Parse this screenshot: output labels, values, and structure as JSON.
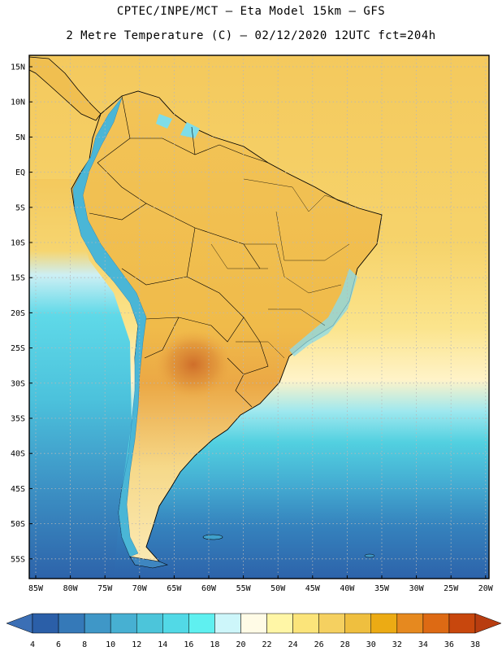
{
  "header": {
    "line1": "CPTEC/INPE/MCT –  Eta Model 15km – GFS",
    "line2": "2 Metre Temperature (C) – 02/12/2020 12UTC fct=204h"
  },
  "map": {
    "lat_labels": [
      "15N",
      "10N",
      "5N",
      "EQ",
      "5S",
      "10S",
      "15S",
      "20S",
      "25S",
      "30S",
      "35S",
      "40S",
      "45S",
      "50S",
      "55S"
    ],
    "lon_labels": [
      "85W",
      "80W",
      "75W",
      "70W",
      "65W",
      "60W",
      "55W",
      "50W",
      "45W",
      "40W",
      "35W",
      "30W",
      "25W",
      "20W"
    ],
    "grid": "dotted",
    "ocean_warm_color": "#f4ca5e",
    "ocean_cold_color": "#2f6ab0",
    "land_hot_color": "#d87a25",
    "andes_color": "#3fa6c9"
  },
  "colorbar": {
    "ticks": [
      "4",
      "6",
      "8",
      "10",
      "12",
      "14",
      "16",
      "18",
      "20",
      "22",
      "24",
      "26",
      "28",
      "30",
      "32",
      "34",
      "36",
      "38"
    ],
    "colors": [
      "#2b5fa8",
      "#3579b8",
      "#3f97c7",
      "#47b0d2",
      "#4cc5da",
      "#52d9e6",
      "#5ff0f0",
      "#cdf6fa",
      "#fffbe6",
      "#fff6a6",
      "#fbe47a",
      "#f5d060",
      "#efbf3f",
      "#ecab14",
      "#e6891f",
      "#dd6a14",
      "#c8470d"
    ],
    "low_arrow_color": "#3b6fb5",
    "high_arrow_color": "#b83d10"
  }
}
